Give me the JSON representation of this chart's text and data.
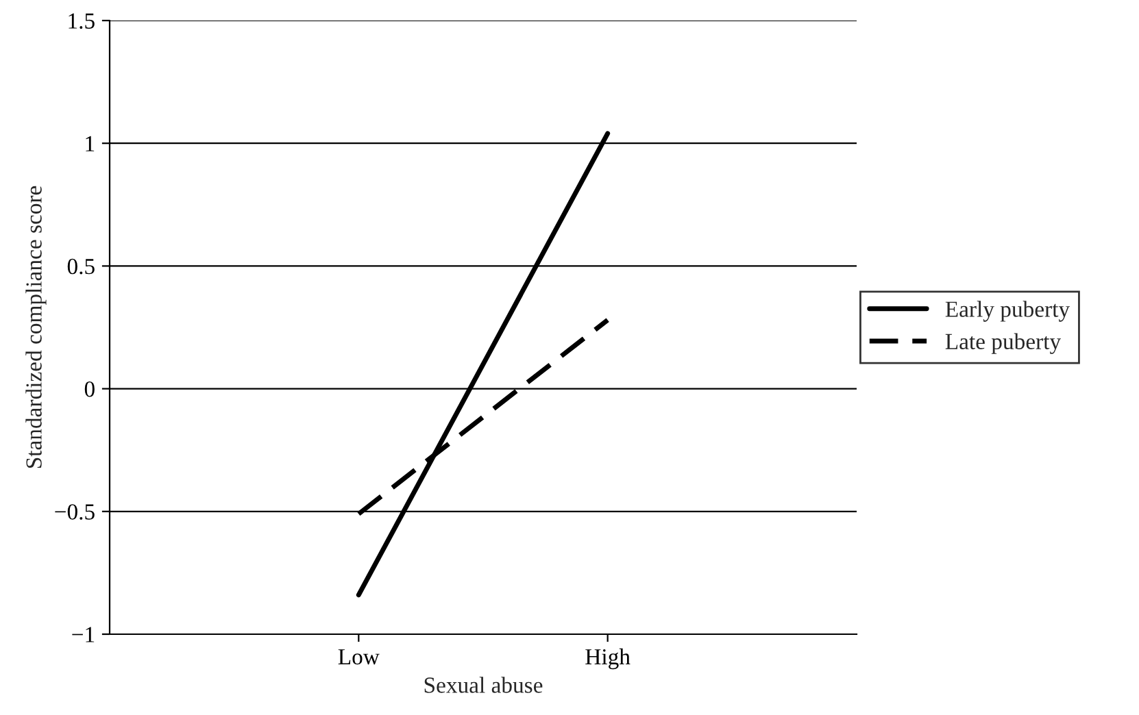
{
  "chart_data": {
    "type": "line",
    "xlabel": "Sexual abuse",
    "ylabel": "Standardized compliance score",
    "categories": [
      "Low",
      "High"
    ],
    "series": [
      {
        "name": "Early puberty",
        "color": "#000000",
        "line_style": "solid",
        "values": [
          -0.84,
          1.04
        ]
      },
      {
        "name": "Late puberty",
        "color": "#000000",
        "line_style": "dashed",
        "values": [
          -0.51,
          0.28
        ]
      }
    ],
    "ylim": [
      -1,
      1.5
    ],
    "yticks": [
      {
        "value": -1,
        "label": "−1"
      },
      {
        "value": -0.5,
        "label": "−0.5"
      },
      0,
      0.5,
      1,
      1.5
    ],
    "grid": "y",
    "legend": "right",
    "marker": "none"
  }
}
